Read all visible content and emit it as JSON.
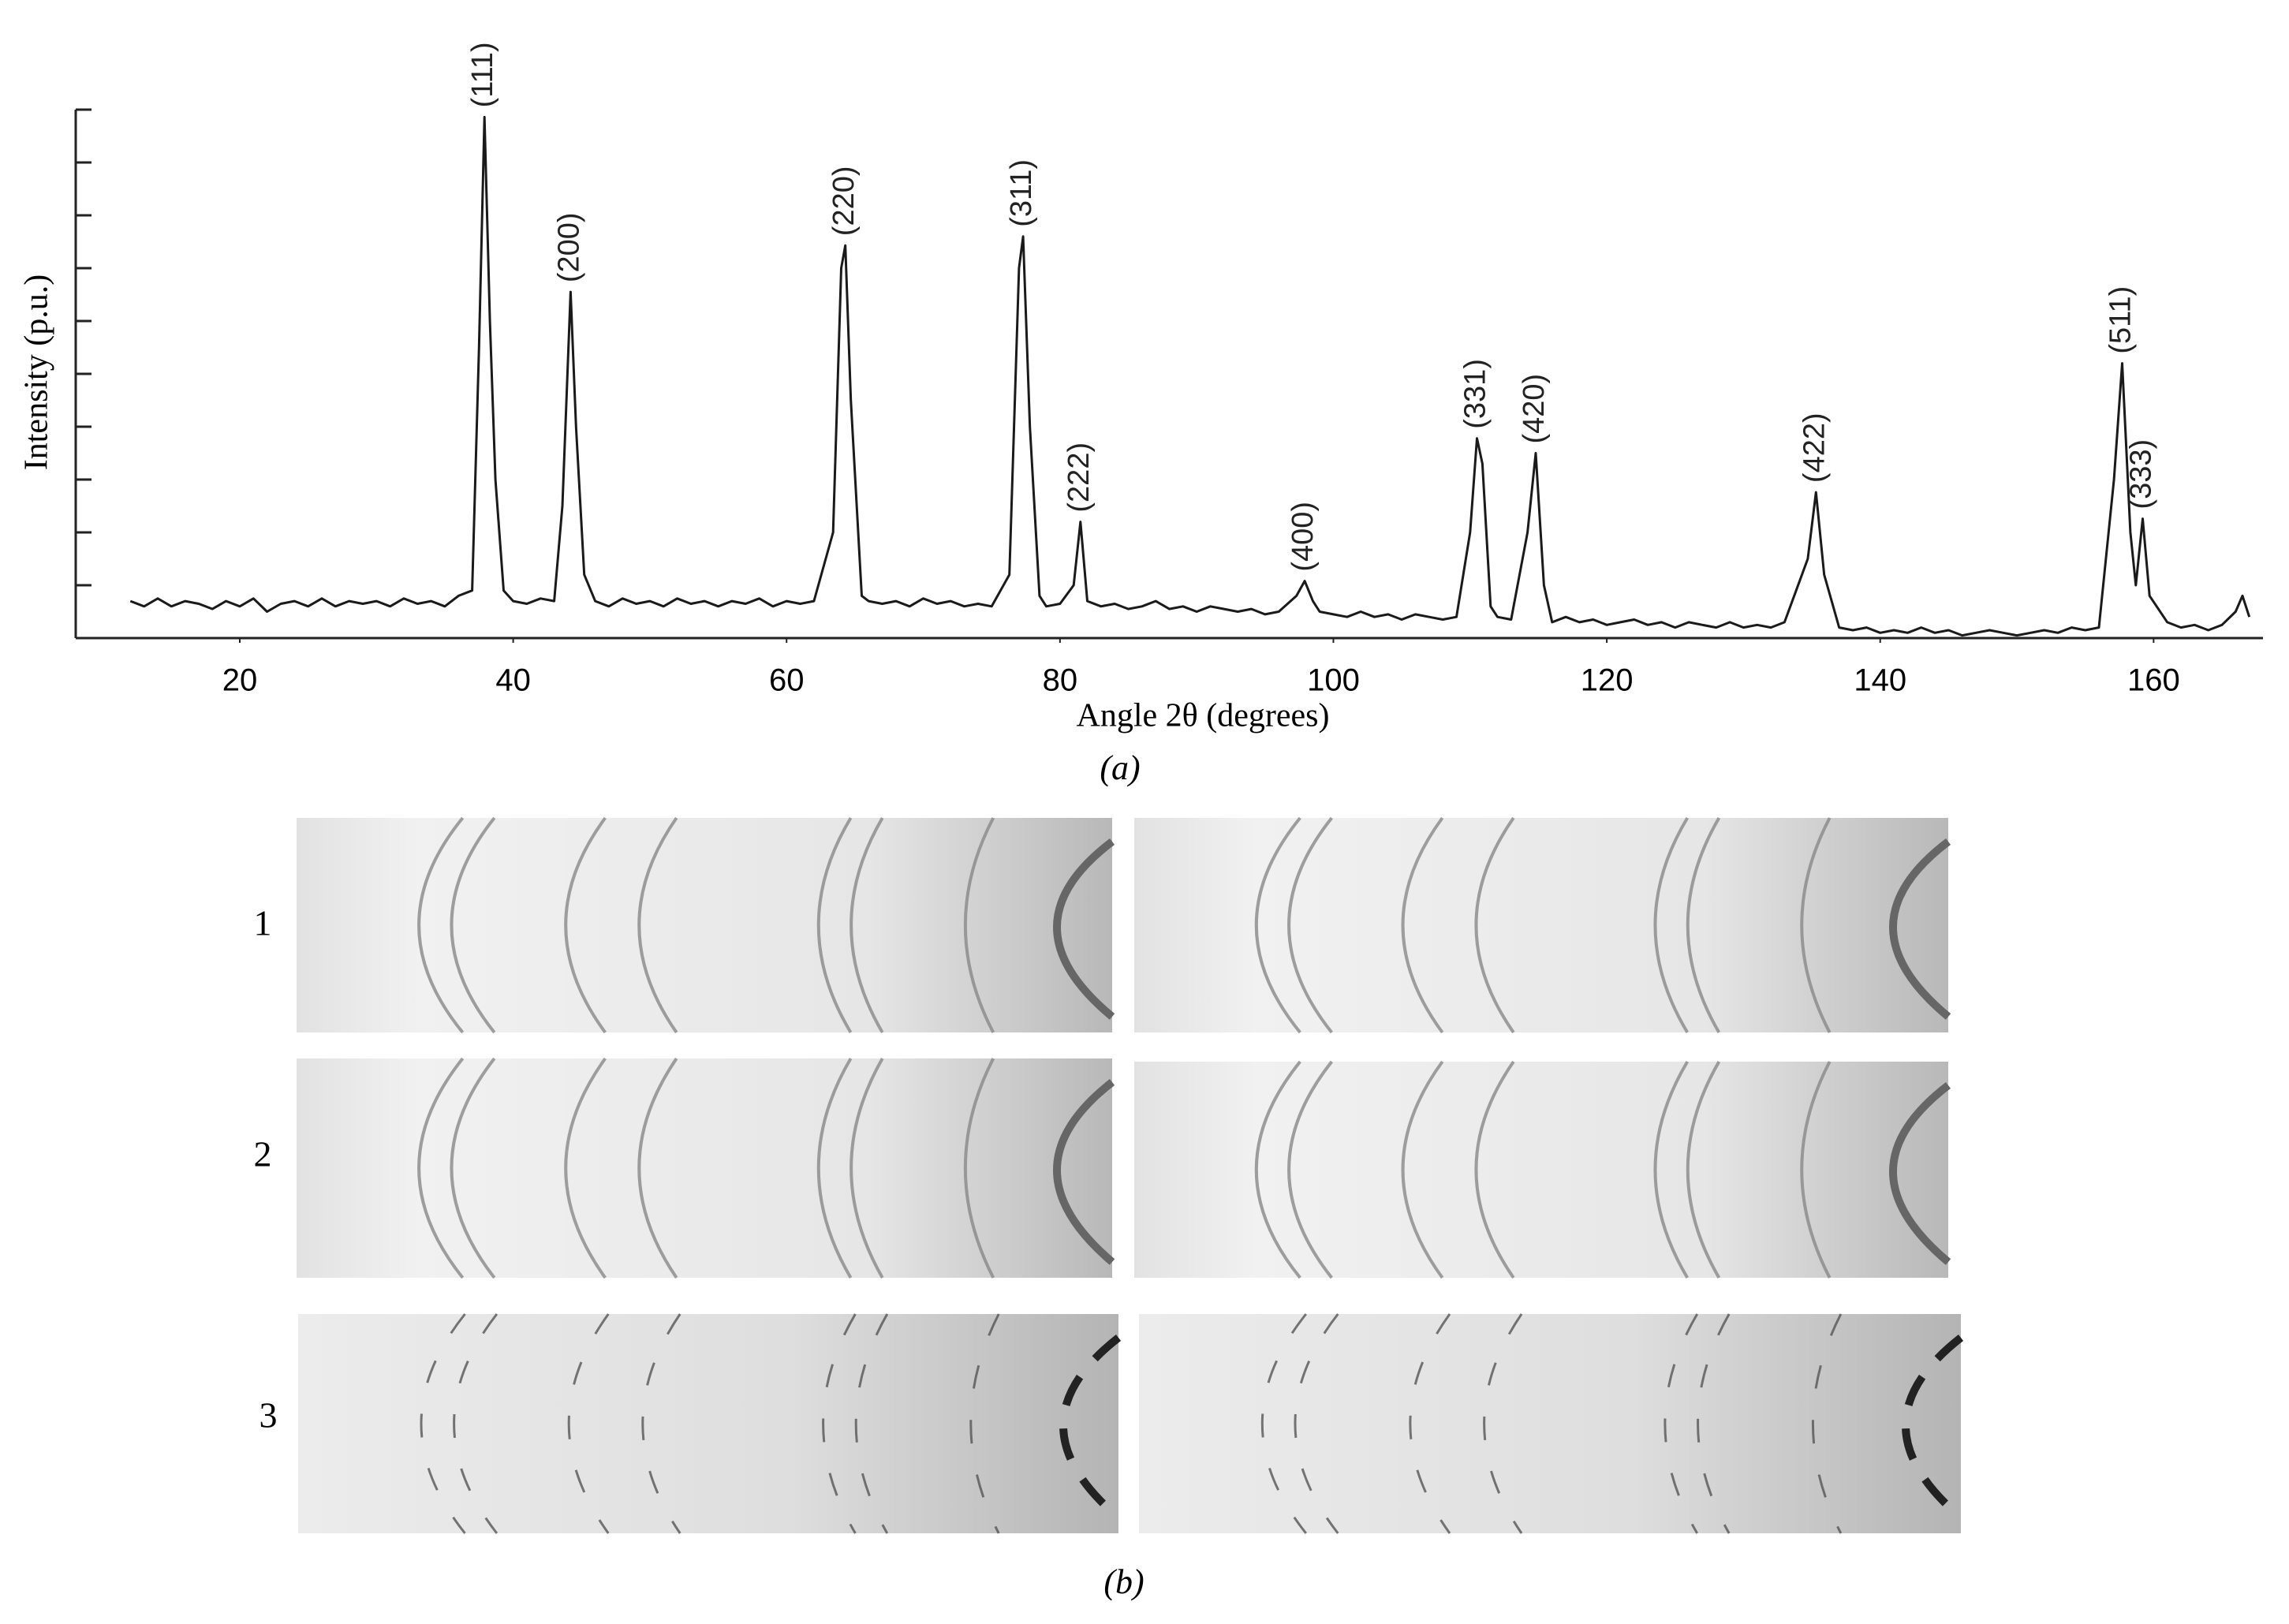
{
  "chart_data": {
    "type": "line",
    "caption": "(a)",
    "xlabel": "Angle 2θ (degrees)",
    "ylabel": "Intensity (p.u.)",
    "color": "#1a1a1a",
    "xlim": [
      8,
      168
    ],
    "xticks": [
      20,
      40,
      60,
      80,
      100,
      120,
      140,
      160
    ],
    "ylim": [
      0,
      100
    ],
    "yticks": [
      0,
      10,
      20,
      30,
      40,
      50,
      60,
      70,
      80,
      90,
      100
    ],
    "ytick_labels": false,
    "x": [
      12,
      13,
      14,
      15,
      16,
      17,
      18,
      19,
      20,
      21,
      22,
      23,
      24,
      25,
      26,
      27,
      28,
      29,
      30,
      31,
      32,
      33,
      34,
      35,
      36,
      37,
      37.5,
      37.9,
      38.3,
      38.7,
      39.3,
      40,
      41,
      42,
      43,
      43.6,
      44.2,
      44.6,
      45.2,
      46,
      47,
      48,
      49,
      50,
      51,
      52,
      53,
      54,
      55,
      56,
      57,
      58,
      59,
      60,
      61,
      62,
      63.4,
      64.0,
      64.3,
      64.7,
      65.5,
      66,
      67,
      68,
      69,
      70,
      71,
      72,
      73,
      74,
      75,
      76.3,
      77.0,
      77.3,
      77.8,
      78.5,
      79,
      80,
      81.0,
      81.5,
      82.0,
      83,
      84,
      85,
      86,
      87,
      88,
      89,
      90,
      91,
      92,
      93,
      94,
      95,
      96,
      97.3,
      97.9,
      98.5,
      99,
      100,
      101,
      102,
      103,
      104,
      105,
      106,
      107,
      108,
      109,
      110,
      110.5,
      110.9,
      111.5,
      112,
      113,
      114.2,
      114.8,
      115.4,
      116,
      117,
      118,
      119,
      120,
      121,
      122,
      123,
      124,
      125,
      126,
      127,
      128,
      129,
      130,
      131,
      132,
      133,
      134.7,
      135.3,
      135.9,
      137,
      138,
      139,
      140,
      141,
      142,
      143,
      144,
      145,
      146,
      147,
      148,
      149,
      150,
      151,
      152,
      153,
      154,
      155,
      156,
      157.1,
      157.7,
      158.3,
      158.7,
      159.2,
      159.7,
      161,
      162,
      163,
      164,
      165,
      166,
      166.5,
      167
    ],
    "values": [
      7,
      6,
      7.5,
      6,
      7,
      6.5,
      5.5,
      7,
      6,
      7.5,
      5,
      6.5,
      7,
      6,
      7.5,
      6,
      7,
      6.5,
      7,
      6,
      7.5,
      6.5,
      7,
      6,
      8,
      9,
      55,
      98.6,
      60,
      30,
      9,
      7,
      6.5,
      7.5,
      7,
      25,
      65.5,
      40,
      12,
      7,
      6,
      7.5,
      6.5,
      7,
      6,
      7.5,
      6.5,
      7,
      6,
      7,
      6.5,
      7.5,
      6,
      7,
      6.5,
      7,
      20,
      70,
      74.3,
      45,
      8,
      7,
      6.5,
      7,
      6,
      7.5,
      6.5,
      7,
      6,
      6.5,
      6,
      12,
      70,
      76,
      40,
      8,
      6,
      6.5,
      10,
      22,
      7,
      6,
      6.5,
      5.5,
      6,
      7,
      5.5,
      6,
      5,
      6,
      5.5,
      5,
      5.5,
      4.5,
      5,
      8,
      10.8,
      7,
      5,
      4.5,
      4,
      5,
      4,
      4.5,
      3.5,
      4.5,
      4,
      3.5,
      4,
      20,
      37.8,
      33,
      6,
      4,
      3.5,
      20,
      35,
      10,
      3,
      4,
      3,
      3.5,
      2.5,
      3,
      3.5,
      2.5,
      3,
      2,
      3,
      2.5,
      2,
      3,
      2,
      2.5,
      2,
      3,
      15,
      27.6,
      12,
      2,
      1.5,
      2,
      1,
      1.5,
      1,
      2,
      1,
      1.5,
      0.5,
      1,
      1.5,
      1,
      0.5,
      1,
      1.5,
      1,
      2,
      1.5,
      2,
      30,
      52,
      20,
      10,
      22.6,
      8,
      3,
      2,
      2.5,
      1.5,
      2.5,
      5,
      8,
      4
    ],
    "annotations": [
      {
        "text": "(111)",
        "x": 37.9,
        "y": 98.6
      },
      {
        "text": "(200)",
        "x": 44.2,
        "y": 65.5
      },
      {
        "text": "(220)",
        "x": 64.3,
        "y": 74.3
      },
      {
        "text": "(311)",
        "x": 77.3,
        "y": 76
      },
      {
        "text": "(222)",
        "x": 81.5,
        "y": 22
      },
      {
        "text": "(400)",
        "x": 97.9,
        "y": 10.8
      },
      {
        "text": "(331)",
        "x": 110.5,
        "y": 37.8
      },
      {
        "text": "(420)",
        "x": 114.8,
        "y": 35
      },
      {
        "text": "(422)",
        "x": 135.3,
        "y": 27.6
      },
      {
        "text": "(511)",
        "x": 157.7,
        "y": 52
      },
      {
        "text": "(333)",
        "x": 159.2,
        "y": 22.6
      }
    ]
  },
  "panel_b": {
    "caption": "(b)",
    "rows": [
      "1",
      "2",
      "3"
    ]
  }
}
